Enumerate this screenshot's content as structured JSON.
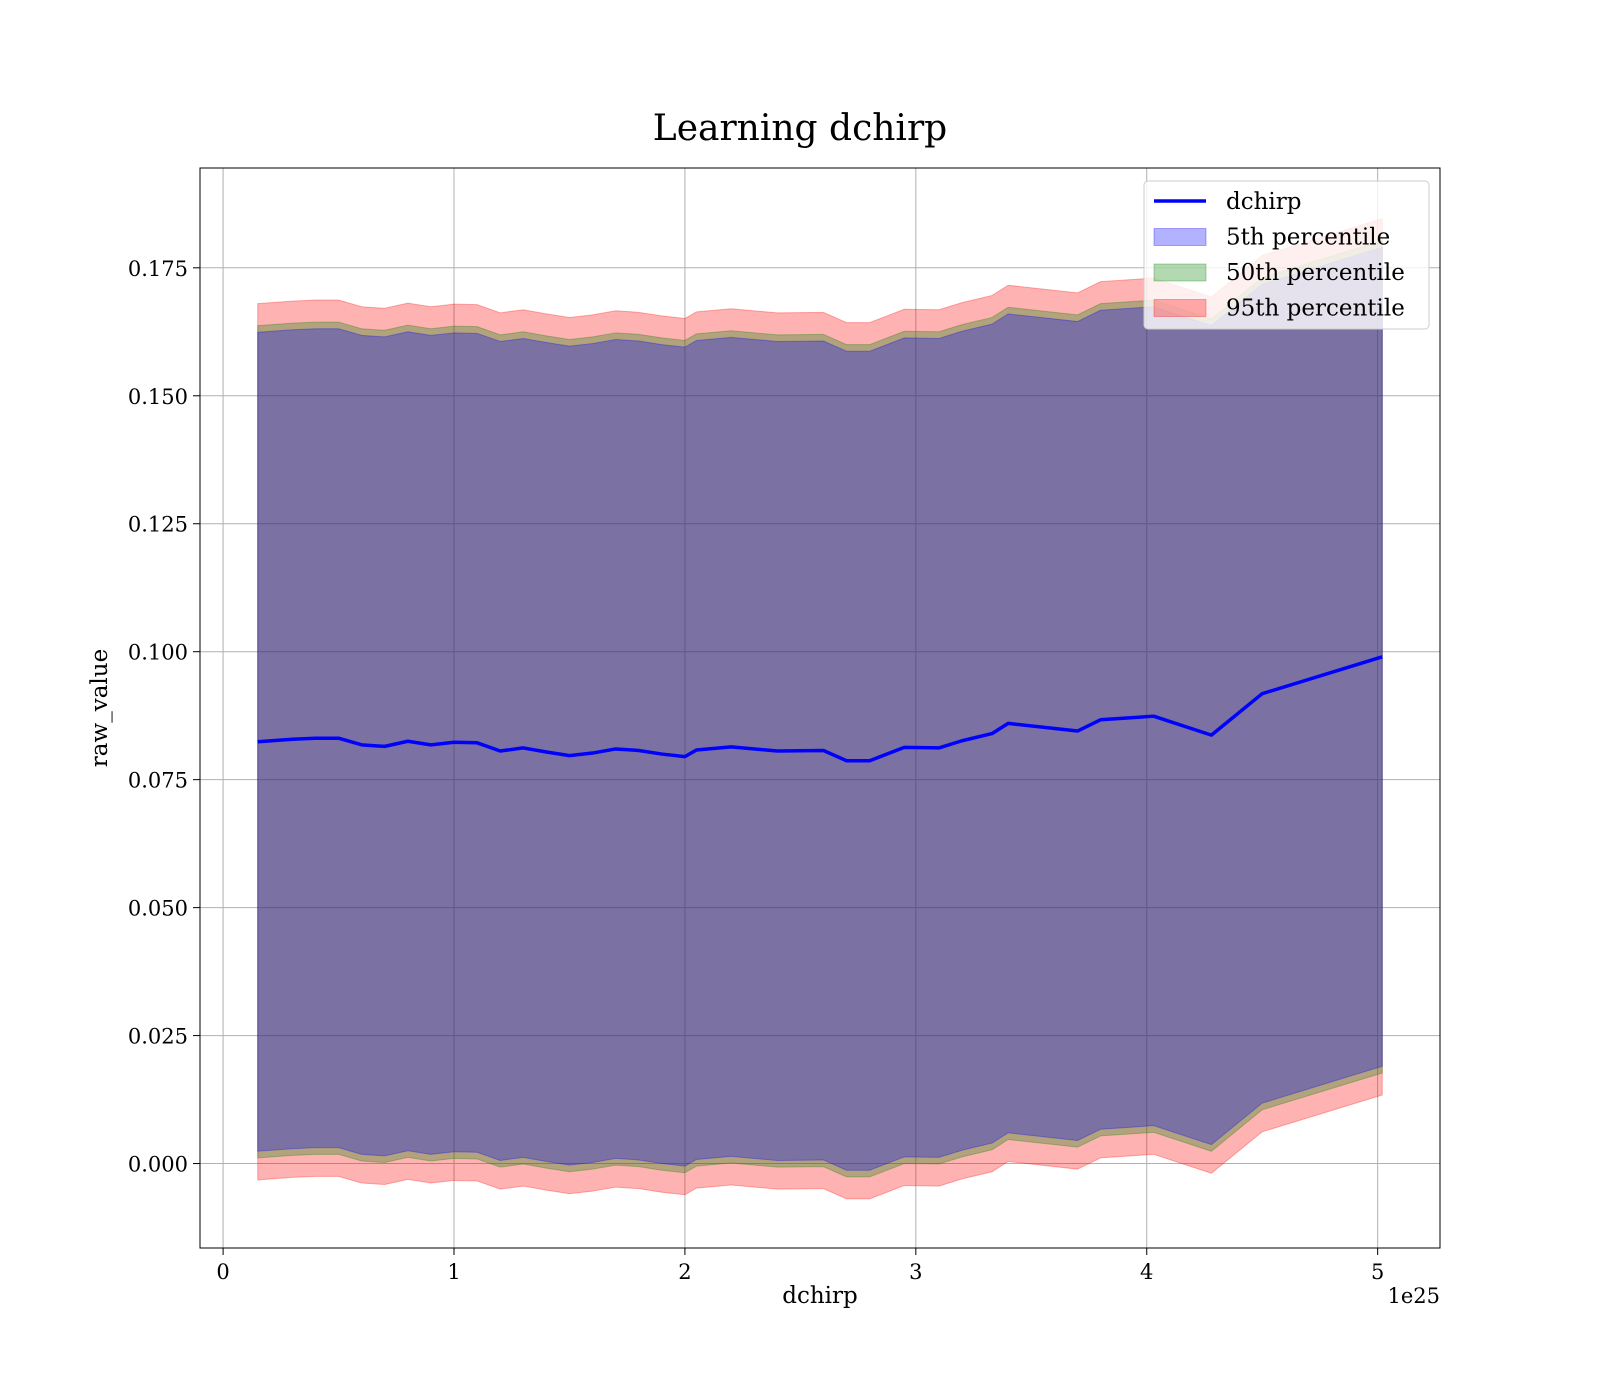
{
  "chart_data": {
    "type": "line",
    "title": "Learning dchirp",
    "xlabel": "dchirp",
    "ylabel": "raw_value",
    "x_offset_label": "1e25",
    "xlim": [
      -0.1,
      5.27
    ],
    "ylim": [
      -0.0165,
      0.1945
    ],
    "x_ticks": [
      0,
      1,
      2,
      3,
      4,
      5
    ],
    "x_tick_labels": [
      "0",
      "1",
      "2",
      "3",
      "4",
      "5"
    ],
    "y_ticks": [
      0.0,
      0.025,
      0.05,
      0.075,
      0.1,
      0.125,
      0.15,
      0.175
    ],
    "y_tick_labels": [
      "0.000",
      "0.025",
      "0.050",
      "0.075",
      "0.100",
      "0.125",
      "0.150",
      "0.175"
    ],
    "grid": true,
    "legend_position": "top-right",
    "colors": {
      "line": "#0000ff",
      "band_5": "#0000ff",
      "band_50": "#008000",
      "band_95": "#ff0000"
    },
    "x": [
      0.15,
      0.3,
      0.4,
      0.5,
      0.6,
      0.7,
      0.8,
      0.9,
      1.0,
      1.1,
      1.2,
      1.3,
      1.4,
      1.5,
      1.6,
      1.7,
      1.8,
      1.9,
      2.0,
      2.05,
      2.2,
      2.4,
      2.6,
      2.7,
      2.8,
      2.95,
      3.1,
      3.2,
      3.33,
      3.4,
      3.7,
      3.8,
      4.03,
      4.28,
      4.5,
      5.02
    ],
    "series": [
      {
        "name": "dchirp",
        "values": [
          0.0824,
          0.0829,
          0.0831,
          0.0831,
          0.0818,
          0.0815,
          0.0825,
          0.0818,
          0.0823,
          0.0822,
          0.0806,
          0.0812,
          0.0804,
          0.0797,
          0.0802,
          0.081,
          0.0807,
          0.08,
          0.0795,
          0.0808,
          0.0814,
          0.0806,
          0.0807,
          0.0787,
          0.0787,
          0.0813,
          0.0812,
          0.0826,
          0.084,
          0.086,
          0.0845,
          0.0867,
          0.0874,
          0.0837,
          0.0918,
          0.099
        ]
      },
      {
        "name": "5th percentile",
        "lower": [
          0.0024,
          0.0029,
          0.0031,
          0.0031,
          0.0018,
          0.0015,
          0.0025,
          0.0018,
          0.0023,
          0.0022,
          0.0006,
          0.0012,
          0.0004,
          -0.0003,
          0.0002,
          0.001,
          0.0007,
          0.0,
          -0.0005,
          0.0008,
          0.0014,
          0.0006,
          0.0007,
          -0.0013,
          -0.0013,
          0.0013,
          0.0012,
          0.0026,
          0.004,
          0.006,
          0.0045,
          0.0067,
          0.0074,
          0.0037,
          0.0118,
          0.019
        ],
        "upper": [
          0.1624,
          0.1629,
          0.1631,
          0.1631,
          0.1618,
          0.1615,
          0.1625,
          0.1618,
          0.1623,
          0.1622,
          0.1606,
          0.1612,
          0.1604,
          0.1597,
          0.1602,
          0.161,
          0.1607,
          0.16,
          0.1595,
          0.1608,
          0.1614,
          0.1606,
          0.1607,
          0.1587,
          0.1587,
          0.1613,
          0.1612,
          0.1626,
          0.164,
          0.166,
          0.1645,
          0.1667,
          0.1674,
          0.1637,
          0.1718,
          0.179
        ]
      },
      {
        "name": "50th percentile",
        "lower": [
          0.0011,
          0.0016,
          0.0018,
          0.0018,
          0.0005,
          0.0002,
          0.0012,
          0.0005,
          0.001,
          0.0009,
          -0.0007,
          -0.0001,
          -0.0009,
          -0.0016,
          -0.0011,
          -0.0003,
          -0.0006,
          -0.0013,
          -0.0018,
          -0.0005,
          0.0001,
          -0.0007,
          -0.0006,
          -0.0026,
          -0.0026,
          0.0,
          -0.0001,
          0.0013,
          0.0027,
          0.0047,
          0.0032,
          0.0054,
          0.0061,
          0.0024,
          0.0105,
          0.0177
        ],
        "upper": [
          0.1637,
          0.1642,
          0.1644,
          0.1644,
          0.1631,
          0.1628,
          0.1638,
          0.1631,
          0.1636,
          0.1635,
          0.1619,
          0.1625,
          0.1617,
          0.161,
          0.1615,
          0.1623,
          0.162,
          0.1613,
          0.1608,
          0.1621,
          0.1627,
          0.1619,
          0.162,
          0.16,
          0.16,
          0.1626,
          0.1625,
          0.1639,
          0.1653,
          0.1673,
          0.1658,
          0.168,
          0.1687,
          0.165,
          0.1731,
          0.1803
        ]
      },
      {
        "name": "95th percentile",
        "lower": [
          -0.0032,
          -0.0027,
          -0.0025,
          -0.0025,
          -0.0038,
          -0.0041,
          -0.0031,
          -0.0038,
          -0.0033,
          -0.0034,
          -0.005,
          -0.0044,
          -0.0052,
          -0.0059,
          -0.0054,
          -0.0046,
          -0.0049,
          -0.0056,
          -0.0061,
          -0.0048,
          -0.0042,
          -0.005,
          -0.0049,
          -0.0069,
          -0.0069,
          -0.0043,
          -0.0044,
          -0.003,
          -0.0016,
          0.0004,
          -0.0011,
          0.0011,
          0.0018,
          -0.0019,
          0.0062,
          0.0134
        ],
        "upper": [
          0.168,
          0.1685,
          0.1687,
          0.1687,
          0.1674,
          0.1671,
          0.1681,
          0.1674,
          0.1679,
          0.1678,
          0.1662,
          0.1668,
          0.166,
          0.1653,
          0.1658,
          0.1666,
          0.1663,
          0.1656,
          0.1651,
          0.1664,
          0.167,
          0.1662,
          0.1663,
          0.1643,
          0.1643,
          0.1669,
          0.1668,
          0.1682,
          0.1696,
          0.1716,
          0.1701,
          0.1723,
          0.173,
          0.1693,
          0.1774,
          0.1846
        ]
      }
    ]
  }
}
